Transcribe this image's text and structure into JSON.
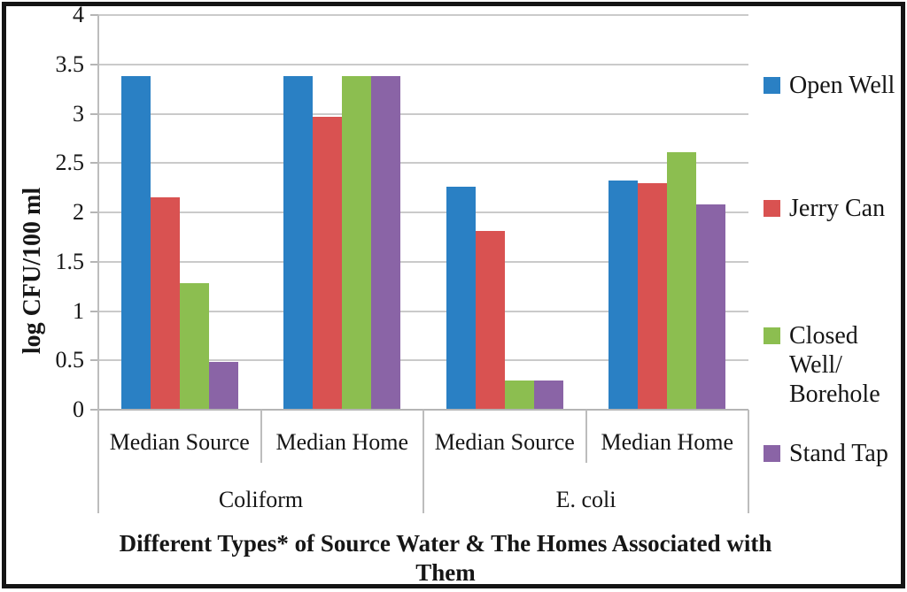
{
  "chart_data": {
    "type": "bar",
    "ylabel": "log CFU/100 ml",
    "xlabel_lines": [
      "Different Types* of Source Water & The Homes Associated with",
      "Them"
    ],
    "ylim": [
      0,
      4
    ],
    "ytick_step": 0.5,
    "ytick_labels_top_down": [
      "4",
      "3.5",
      "3",
      "2.5",
      "2",
      "1.5",
      "1",
      "0.5",
      "0"
    ],
    "grid": true,
    "legend_position": "right",
    "groups": [
      {
        "label": "Coliform",
        "categories": [
          "Median Source",
          "Median Home"
        ]
      },
      {
        "label": "E. coli",
        "categories": [
          "Median Source",
          "Median Home"
        ]
      }
    ],
    "categories": [
      "Median Source",
      "Median Home",
      "Median Source",
      "Median Home"
    ],
    "series": [
      {
        "name": "Open Well",
        "legend_lines": [
          "Open Well"
        ],
        "color": "#2A80C4",
        "values": [
          3.38,
          3.38,
          2.26,
          2.32
        ]
      },
      {
        "name": "Jerry Can",
        "legend_lines": [
          "Jerry Can"
        ],
        "color": "#D95251",
        "values": [
          2.15,
          2.97,
          1.81,
          2.3
        ]
      },
      {
        "name": "Closed Well/Borehole",
        "legend_lines": [
          "Closed",
          "Well/",
          "Borehole"
        ],
        "color": "#8CBE50",
        "values": [
          1.28,
          3.38,
          0.3,
          2.61
        ]
      },
      {
        "name": "Stand Tap",
        "legend_lines": [
          "Stand Tap"
        ],
        "color": "#8A64A6",
        "values": [
          0.48,
          3.38,
          0.3,
          2.08
        ]
      }
    ]
  },
  "colors": {
    "grid": "#cacaca",
    "axis": "#b5b5b5",
    "frame": "#141414",
    "text": "#161616"
  }
}
